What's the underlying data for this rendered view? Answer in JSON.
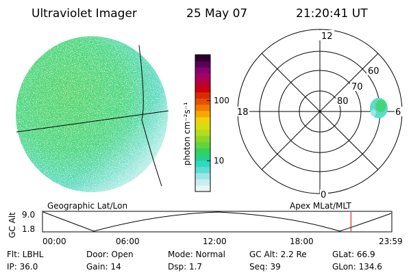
{
  "header": {
    "instrument": "Ultraviolet Imager",
    "date": "25 May 07",
    "time": "21:20:41 UT"
  },
  "colorbar": {
    "label": "photon cm⁻²s⁻¹",
    "ticks": [
      "100",
      "10"
    ],
    "colors": [
      "#e9f5f6",
      "#c9eef0",
      "#9fe5e8",
      "#5fdcd8",
      "#30d9c0",
      "#28cf88",
      "#33d160",
      "#62d53a",
      "#8ad72a",
      "#b6dc1e",
      "#d6de10",
      "#f0d20a",
      "#f7a800",
      "#f07a00",
      "#e55000",
      "#d82a00",
      "#c80010",
      "#b8003a",
      "#a80060",
      "#880070",
      "#5a0058",
      "#2a0030"
    ]
  },
  "geo_map": {
    "title": "Geographic Lat/Lon"
  },
  "polar": {
    "title": "Apex MLat/MLT",
    "mlt_labels": {
      "top": "12",
      "left": "18",
      "right": "6",
      "bottom": "0"
    },
    "lat_labels": [
      "60",
      "70",
      "80"
    ]
  },
  "timeline": {
    "ylabel": "GC Alt",
    "ytick_top": "9.0",
    "ytick_bottom": "1.8",
    "xticks": [
      "00:00",
      "06:00",
      "12:00",
      "18:00",
      "23:59"
    ],
    "current_fraction": 0.883
  },
  "footer": {
    "filter": "Flt: LBHL",
    "ip": "IP: 36.0",
    "door": "Door: Open",
    "gain": "Gain: 14",
    "mode": "Mode: Normal",
    "dsp": "Dsp:    1.7",
    "gc_alt": "GC Alt: 2.2 Re",
    "seq": "Seq: 39",
    "glat": "GLat:  66.9",
    "glon": "GLon: 134.6"
  }
}
